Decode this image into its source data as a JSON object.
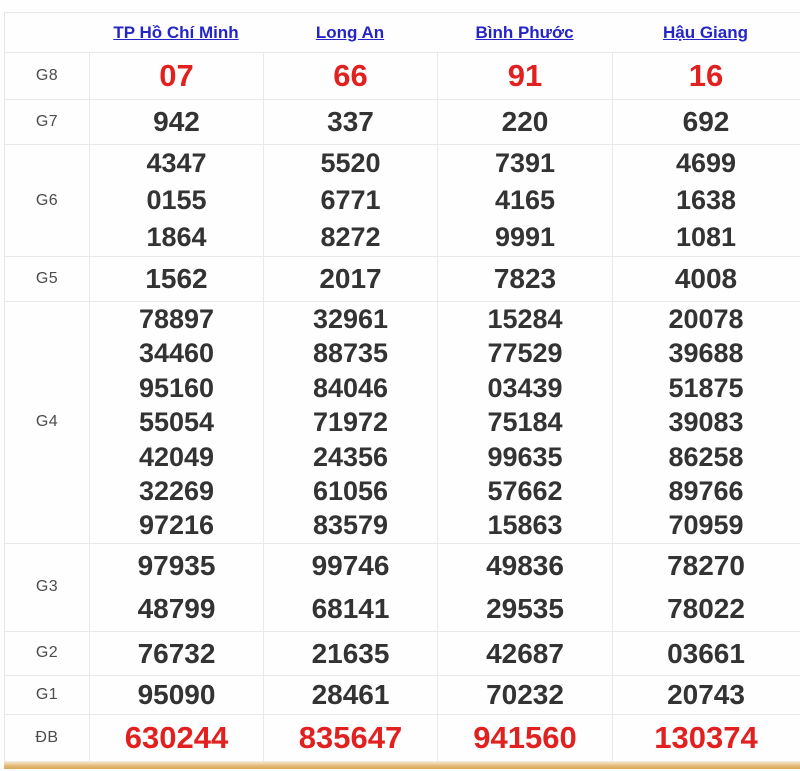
{
  "table": {
    "provinces": [
      "TP Hồ Chí Minh",
      "Long An",
      "Bình Phước",
      "Hậu Giang"
    ],
    "rows": [
      {
        "key": "g8",
        "label": "G8",
        "highlight": true,
        "values": [
          [
            "07"
          ],
          [
            "66"
          ],
          [
            "91"
          ],
          [
            "16"
          ]
        ]
      },
      {
        "key": "g7",
        "label": "G7",
        "highlight": false,
        "values": [
          [
            "942"
          ],
          [
            "337"
          ],
          [
            "220"
          ],
          [
            "692"
          ]
        ]
      },
      {
        "key": "g6",
        "label": "G6",
        "highlight": false,
        "values": [
          [
            "4347",
            "0155",
            "1864"
          ],
          [
            "5520",
            "6771",
            "8272"
          ],
          [
            "7391",
            "4165",
            "9991"
          ],
          [
            "4699",
            "1638",
            "1081"
          ]
        ]
      },
      {
        "key": "g5",
        "label": "G5",
        "highlight": false,
        "values": [
          [
            "1562"
          ],
          [
            "2017"
          ],
          [
            "7823"
          ],
          [
            "4008"
          ]
        ]
      },
      {
        "key": "g4",
        "label": "G4",
        "highlight": false,
        "values": [
          [
            "78897",
            "34460",
            "95160",
            "55054",
            "42049",
            "32269",
            "97216"
          ],
          [
            "32961",
            "88735",
            "84046",
            "71972",
            "24356",
            "61056",
            "83579"
          ],
          [
            "15284",
            "77529",
            "03439",
            "75184",
            "99635",
            "57662",
            "15863"
          ],
          [
            "20078",
            "39688",
            "51875",
            "39083",
            "86258",
            "89766",
            "70959"
          ]
        ]
      },
      {
        "key": "g3",
        "label": "G3",
        "highlight": false,
        "values": [
          [
            "97935",
            "48799"
          ],
          [
            "99746",
            "68141"
          ],
          [
            "49836",
            "29535"
          ],
          [
            "78270",
            "78022"
          ]
        ]
      },
      {
        "key": "g2",
        "label": "G2",
        "highlight": false,
        "values": [
          [
            "76732"
          ],
          [
            "21635"
          ],
          [
            "42687"
          ],
          [
            "03661"
          ]
        ]
      },
      {
        "key": "g1",
        "label": "G1",
        "highlight": false,
        "values": [
          [
            "95090"
          ],
          [
            "28461"
          ],
          [
            "70232"
          ],
          [
            "20743"
          ]
        ]
      },
      {
        "key": "db",
        "label": "ĐB",
        "highlight": true,
        "values": [
          [
            "630244"
          ],
          [
            "835647"
          ],
          [
            "941560"
          ],
          [
            "130374"
          ]
        ]
      }
    ],
    "colors": {
      "link_blue": "#2425c4",
      "highlight_red": "#e12120",
      "number_dark": "#333333",
      "label_gray": "#4c4c4c",
      "grid_border": "#e9e9e9",
      "bottom_bar_tan": "#e3b876"
    }
  }
}
